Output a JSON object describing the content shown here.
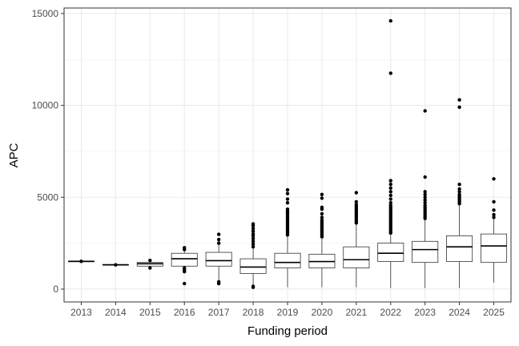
{
  "chart_data": {
    "type": "boxplot",
    "xlabel": "Funding period",
    "ylabel": "APC",
    "ylim": [
      -700,
      15300
    ],
    "yticks": [
      0,
      5000,
      10000,
      15000
    ],
    "grid": true,
    "legend": "none",
    "categories": [
      "2013",
      "2014",
      "2015",
      "2016",
      "2017",
      "2018",
      "2019",
      "2020",
      "2021",
      "2022",
      "2023",
      "2024",
      "2025"
    ],
    "boxes": [
      {
        "category": "2013",
        "q1": 1490,
        "median": 1510,
        "q3": 1530,
        "whisker_low": 1490,
        "whisker_high": 1530,
        "outliers": [
          1510
        ]
      },
      {
        "category": "2014",
        "q1": 1300,
        "median": 1320,
        "q3": 1340,
        "whisker_low": 1300,
        "whisker_high": 1340,
        "outliers": [
          1320
        ]
      },
      {
        "category": "2015",
        "q1": 1250,
        "median": 1380,
        "q3": 1450,
        "whisker_low": 1250,
        "whisker_high": 1500,
        "outliers": [
          1150,
          1560
        ]
      },
      {
        "category": "2016",
        "q1": 1250,
        "median": 1650,
        "q3": 1950,
        "whisker_low": 1000,
        "whisker_high": 2050,
        "outliers": [
          300,
          950,
          1050,
          1150,
          2150,
          2250
        ]
      },
      {
        "category": "2017",
        "q1": 1250,
        "median": 1550,
        "q3": 2000,
        "whisker_low": 500,
        "whisker_high": 2450,
        "outliers": [
          300,
          400,
          2500,
          2700,
          2980
        ]
      },
      {
        "category": "2018",
        "q1": 850,
        "median": 1200,
        "q3": 1650,
        "whisker_low": 200,
        "whisker_high": 2200,
        "outliers": [
          150,
          100,
          2300,
          2450,
          2600,
          2750,
          2900,
          3000,
          3150,
          3300,
          3450,
          3550
        ]
      },
      {
        "category": "2019",
        "q1": 1150,
        "median": 1450,
        "q3": 1950,
        "whisker_low": 100,
        "whisker_high": 2900,
        "outliers": [
          2950,
          3050,
          3150,
          3250,
          3350,
          3450,
          3550,
          3650,
          3750,
          3850,
          3950,
          4050,
          4150,
          4250,
          4350,
          4700,
          4900,
          5200,
          5400
        ]
      },
      {
        "category": "2020",
        "q1": 1150,
        "median": 1500,
        "q3": 1900,
        "whisker_low": 100,
        "whisker_high": 2800,
        "outliers": [
          2850,
          2950,
          3050,
          3150,
          3250,
          3350,
          3450,
          3550,
          3650,
          3750,
          3900,
          4100,
          4350,
          4450,
          4950,
          5150
        ]
      },
      {
        "category": "2021",
        "q1": 1150,
        "median": 1600,
        "q3": 2300,
        "whisker_low": 100,
        "whisker_high": 3550,
        "outliers": [
          3600,
          3700,
          3800,
          3900,
          4000,
          4100,
          4200,
          4300,
          4400,
          4500,
          4600,
          4750,
          5250
        ]
      },
      {
        "category": "2022",
        "q1": 1500,
        "median": 1950,
        "q3": 2500,
        "whisker_low": 50,
        "whisker_high": 3000,
        "outliers": [
          3050,
          3150,
          3250,
          3350,
          3450,
          3550,
          3650,
          3750,
          3850,
          3950,
          4050,
          4150,
          4250,
          4350,
          4450,
          4550,
          4700,
          4900,
          5100,
          5300,
          5500,
          5700,
          5900,
          11750,
          14600
        ]
      },
      {
        "category": "2023",
        "q1": 1450,
        "median": 2150,
        "q3": 2600,
        "whisker_low": 50,
        "whisker_high": 3800,
        "outliers": [
          3850,
          3950,
          4050,
          4150,
          4250,
          4350,
          4450,
          4550,
          4700,
          4850,
          5000,
          5150,
          5300,
          6100,
          9700
        ]
      },
      {
        "category": "2024",
        "q1": 1500,
        "median": 2300,
        "q3": 2900,
        "whisker_low": 50,
        "whisker_high": 4600,
        "outliers": [
          4650,
          4750,
          4850,
          4950,
          5050,
          5150,
          5300,
          5450,
          5700,
          9900,
          10300
        ]
      },
      {
        "category": "2025",
        "q1": 1450,
        "median": 2350,
        "q3": 3000,
        "whisker_low": 350,
        "whisker_high": 3800,
        "outliers": [
          3900,
          4050,
          4300,
          4750,
          6000
        ]
      }
    ]
  }
}
